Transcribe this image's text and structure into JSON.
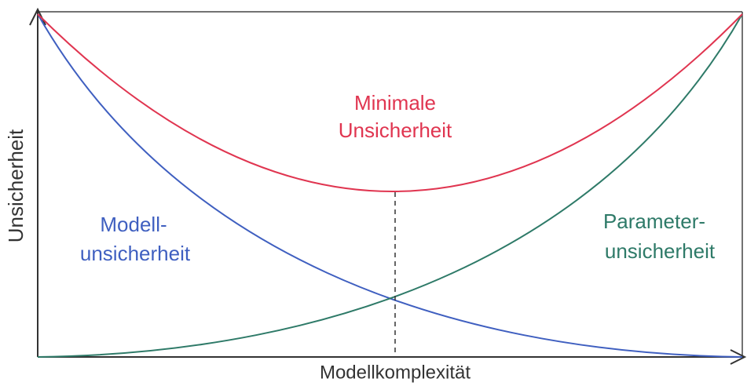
{
  "y_axis_label": "Unsicherheit",
  "x_axis_label": "Modellkomplexität",
  "labels": {
    "minimum": [
      "Minimale",
      "Unsicherheit"
    ],
    "model": [
      "Modell-",
      "unsicherheit"
    ],
    "parameter": [
      "Parameter-",
      "unsicherheit"
    ]
  }
}
